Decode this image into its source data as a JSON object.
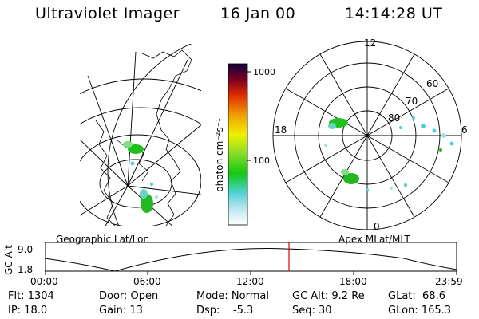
{
  "header": {
    "instrument": "Ultraviolet Imager",
    "date": "16 Jan 00",
    "time": "14:14:28 UT"
  },
  "colorbar": {
    "unit_label": "photon cm⁻²s⁻¹",
    "tick_labels": [
      "1000",
      "100"
    ],
    "scale": "log"
  },
  "panels": {
    "left_caption": "Geographic Lat/Lon",
    "right_caption": "Apex MLat/MLT",
    "mlt_labels": {
      "top": "12",
      "left": "18",
      "right": "6",
      "bottom": "0"
    },
    "mlat_labels": [
      "60",
      "70",
      "80"
    ]
  },
  "altitude_plot": {
    "ylabel": "GC Alt",
    "y_ticks": [
      "9.0",
      "1.8"
    ],
    "x_ticks": [
      "00:00",
      "06:00",
      "12:00",
      "18:00",
      "23:59"
    ],
    "marker_color": "#e00000"
  },
  "stats": [
    {
      "key": "flt",
      "text": "Flt: 1304"
    },
    {
      "key": "door",
      "text": "Door: Open"
    },
    {
      "key": "mode",
      "text": "Mode: Normal"
    },
    {
      "key": "gcalt",
      "text": "GC Alt: 9.2 Re"
    },
    {
      "key": "glat",
      "text": "GLat:  68.6"
    },
    {
      "key": "ip",
      "text": "IP: 18.0"
    },
    {
      "key": "gain",
      "text": "Gain: 13"
    },
    {
      "key": "dsp",
      "text": "Dsp:    -5.3"
    },
    {
      "key": "seq",
      "text": "Seq: 30"
    },
    {
      "key": "glon",
      "text": "GLon: 165.3"
    }
  ]
}
